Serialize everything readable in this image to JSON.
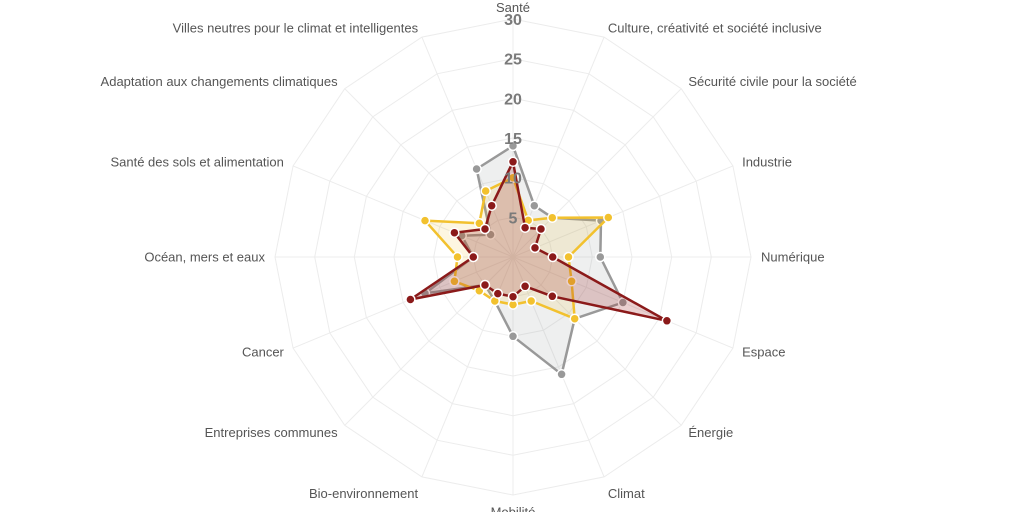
{
  "chart_data": {
    "type": "radar",
    "categories": [
      "Santé",
      "Culture, créativité et société inclusive",
      "Sécurité civile pour la société",
      "Industrie",
      "Numérique",
      "Espace",
      "Énergie",
      "Climat",
      "Mobilité",
      "Bio-environnement",
      "Entreprises communes",
      "Cancer",
      "Océan, mers et eaux",
      "Santé des sols et alimentation",
      "Adaptation aux changements climatiques",
      "Villes neutres pour le climat et intelligentes"
    ],
    "radial_ticks": [
      5,
      10,
      15,
      20,
      25,
      30
    ],
    "rlim": [
      0,
      30
    ],
    "grid": true,
    "series": [
      {
        "color": "#999999",
        "fill": "rgba(160,165,165,0.18)",
        "values": [
          14,
          7,
          7,
          12,
          11,
          15,
          11,
          16,
          10,
          6,
          5,
          12,
          5,
          7,
          4,
          12
        ]
      },
      {
        "color": "#f2c12e",
        "fill": "rgba(242,193,46,0.14)",
        "values": [
          10,
          5,
          7,
          13,
          7,
          8,
          11,
          6,
          6,
          6,
          6,
          8,
          7,
          12,
          6,
          9
        ]
      },
      {
        "color": "#8b1a1a",
        "fill": "rgba(160,40,40,0.22)",
        "values": [
          12,
          4,
          5,
          3,
          5,
          21,
          7,
          4,
          5,
          5,
          5,
          14,
          5,
          8,
          5,
          7
        ]
      }
    ]
  }
}
